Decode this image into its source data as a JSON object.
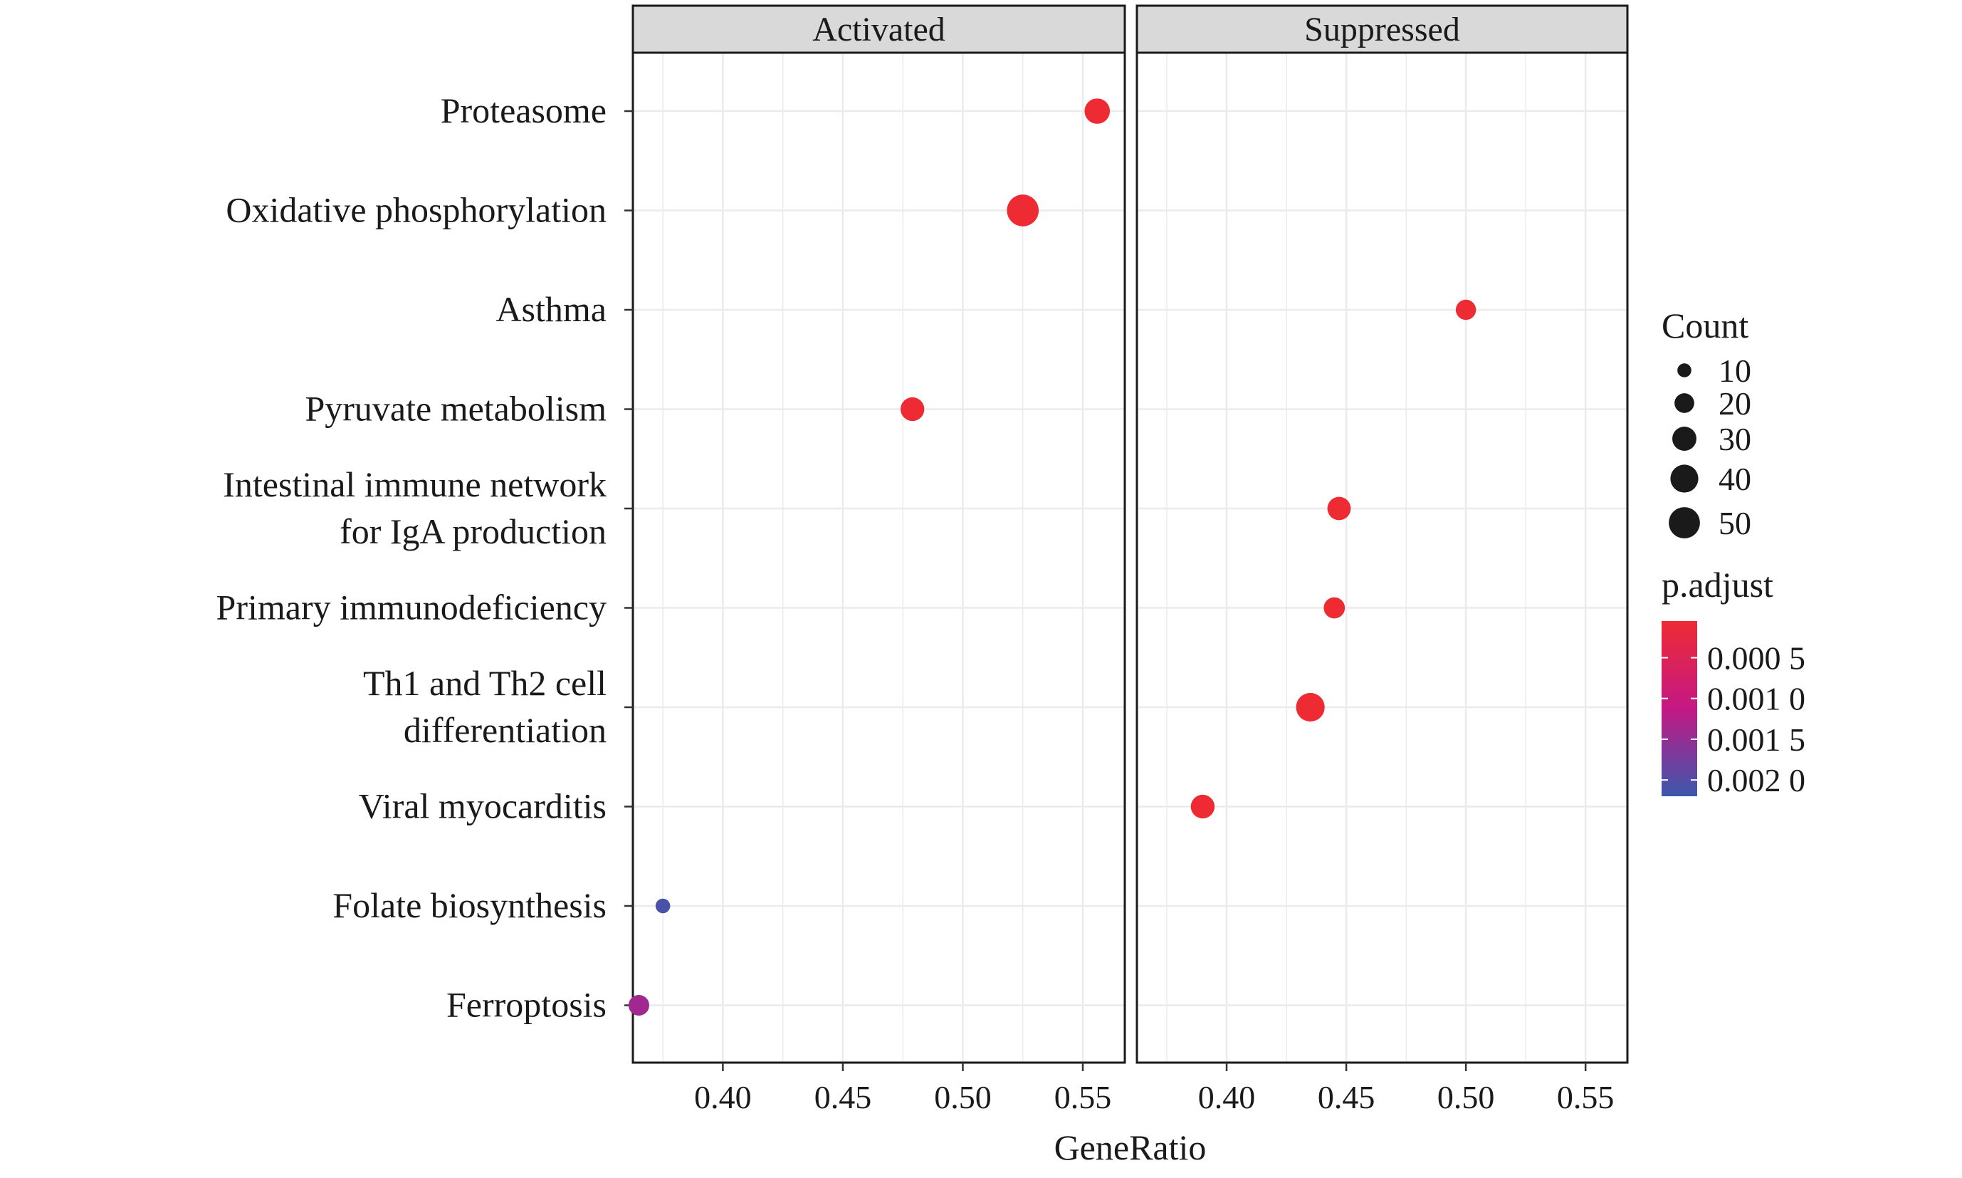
{
  "chart_data": {
    "type": "scatter",
    "xlabel": "GeneRatio",
    "panels": [
      "Activated",
      "Suppressed"
    ],
    "x_ticks": [
      "0.40",
      "0.45",
      "0.50",
      "0.55"
    ],
    "x_tick_values": [
      0.4,
      0.45,
      0.5,
      0.55
    ],
    "xlim": [
      0.3625,
      0.5675
    ],
    "categories": [
      "Proteasome",
      "Oxidative phosphorylation",
      "Asthma",
      "Pyruvate metabolism",
      "Intestinal immune network\nfor IgA production",
      "Primary immunodeficiency",
      "Th1 and Th2 cell\ndifferentiation",
      "Viral myocarditis",
      "Folate biosynthesis",
      "Ferroptosis"
    ],
    "points": [
      {
        "panel": "Activated",
        "category": "Proteasome",
        "x": 0.556,
        "count": 33,
        "p_adjust": 5e-05
      },
      {
        "panel": "Activated",
        "category": "Oxidative phosphorylation",
        "x": 0.525,
        "count": 52,
        "p_adjust": 5e-05
      },
      {
        "panel": "Activated",
        "category": "Pyruvate metabolism",
        "x": 0.479,
        "count": 29,
        "p_adjust": 5e-05
      },
      {
        "panel": "Activated",
        "category": "Folate biosynthesis",
        "x": 0.375,
        "count": 11,
        "p_adjust": 0.0021
      },
      {
        "panel": "Activated",
        "category": "Ferroptosis",
        "x": 0.365,
        "count": 22,
        "p_adjust": 0.0014
      },
      {
        "panel": "Suppressed",
        "category": "Asthma",
        "x": 0.5,
        "count": 21,
        "p_adjust": 5e-05
      },
      {
        "panel": "Suppressed",
        "category": "Intestinal immune network\nfor IgA production",
        "x": 0.447,
        "count": 28,
        "p_adjust": 5e-05
      },
      {
        "panel": "Suppressed",
        "category": "Primary immunodeficiency",
        "x": 0.445,
        "count": 23,
        "p_adjust": 5e-05
      },
      {
        "panel": "Suppressed",
        "category": "Th1 and Th2 cell\ndifferentiation",
        "x": 0.435,
        "count": 42,
        "p_adjust": 5e-05
      },
      {
        "panel": "Suppressed",
        "category": "Viral myocarditis",
        "x": 0.39,
        "count": 29,
        "p_adjust": 5e-05
      }
    ],
    "legend_count": {
      "title": "Count",
      "values": [
        10,
        20,
        30,
        40,
        50
      ],
      "labels": [
        "10",
        "20",
        "30",
        "40",
        "50"
      ]
    },
    "legend_color": {
      "title": "p.adjust",
      "labels": [
        "0.000 5",
        "0.001 0",
        "0.001 5",
        "0.002 0"
      ],
      "values": [
        0.0005,
        0.001,
        0.0015,
        0.002
      ],
      "range": [
        5e-05,
        0.0022
      ]
    },
    "colors": {
      "low_p": "#ee2b33",
      "high_p": "#3b58ad",
      "mid_p": "#c41885",
      "point_outline": "#1a1a1a",
      "grid": "#ebebeb",
      "strip": "#d9d9d9"
    },
    "grid": true,
    "legend_position": "right"
  }
}
